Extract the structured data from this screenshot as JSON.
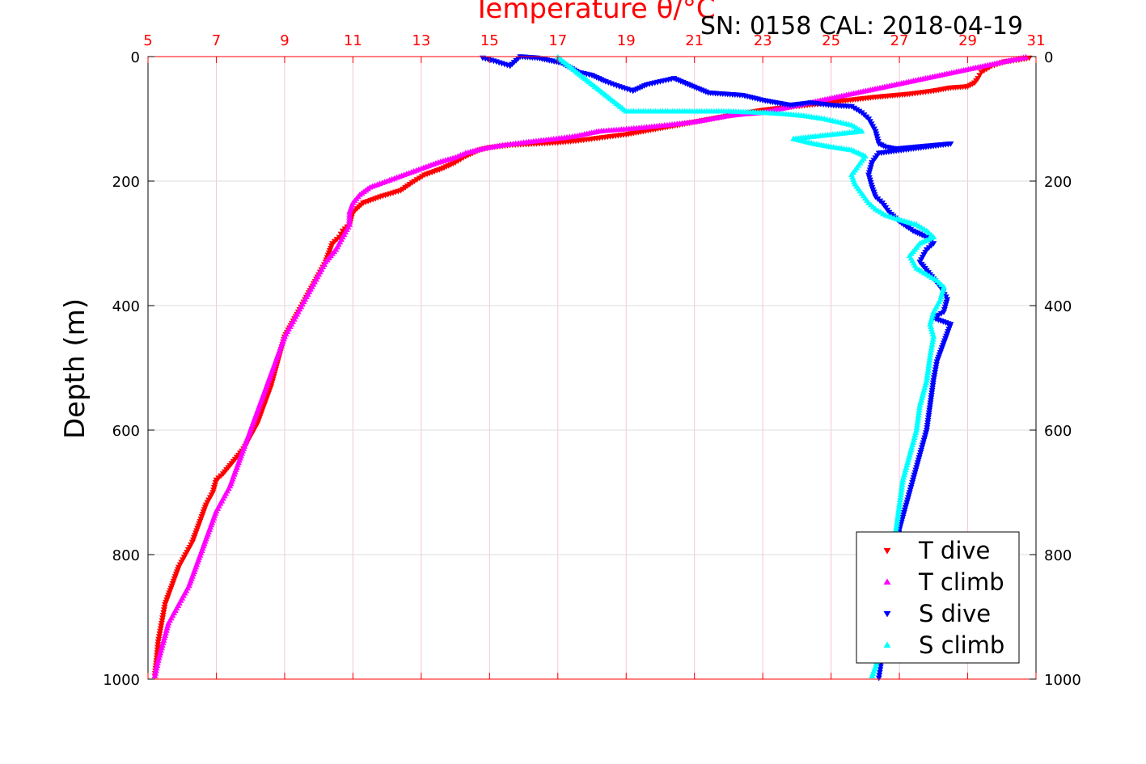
{
  "chart_data": {
    "type": "scatter",
    "title": "SN: 0158  CAL: 2018-04-19",
    "xlabel": "Temperature θ/°C",
    "ylabel": "Depth (m)",
    "xlim": [
      5,
      31
    ],
    "ylim": [
      1000,
      0
    ],
    "x_ticks": [
      5,
      7,
      9,
      11,
      13,
      15,
      17,
      19,
      21,
      23,
      25,
      27,
      29,
      31
    ],
    "y_ticks": [
      0,
      200,
      400,
      600,
      800,
      1000
    ],
    "grid": true,
    "legend_position": "bottom-right",
    "series": [
      {
        "name": "T dive",
        "marker": "triangle-down",
        "color": "#ff0000",
        "x": [
          30.8,
          30.5,
          30.1,
          29.7,
          29.4,
          29.3,
          29.2,
          29.0,
          28.5,
          28.0,
          27.3,
          26.3,
          25.2,
          24.3,
          23.6,
          23.0,
          22.0,
          21.0,
          20.0,
          19.0,
          18.3,
          17.6,
          17.0,
          16.3,
          15.6,
          15.0,
          14.7,
          14.3,
          14.0,
          13.6,
          13.1,
          12.8,
          12.4,
          11.8,
          11.3,
          11.0,
          10.9,
          10.7,
          10.6,
          10.4,
          10.2,
          10.0,
          9.6,
          9.4,
          9.0,
          8.8,
          8.6,
          8.4,
          8.2,
          8.0,
          7.8,
          7.5,
          7.2,
          7.0,
          6.9,
          6.7,
          6.5,
          6.3,
          6.1,
          5.9,
          5.7,
          5.5,
          5.4,
          5.3,
          5.25,
          5.2
        ],
        "y": [
          2,
          5,
          8,
          15,
          25,
          35,
          42,
          48,
          50,
          55,
          60,
          65,
          72,
          78,
          82,
          86,
          95,
          105,
          115,
          125,
          130,
          135,
          138,
          140,
          142,
          146,
          150,
          160,
          170,
          180,
          190,
          200,
          215,
          225,
          235,
          250,
          270,
          280,
          290,
          300,
          330,
          350,
          390,
          410,
          450,
          490,
          530,
          560,
          590,
          610,
          630,
          650,
          670,
          680,
          700,
          720,
          750,
          780,
          800,
          820,
          850,
          880,
          910,
          940,
          970,
          995
        ]
      },
      {
        "name": "T climb",
        "marker": "triangle-up",
        "color": "#ff00ff",
        "x": [
          30.7,
          23.0,
          22.5,
          22.0,
          21.5,
          21.0,
          20.2,
          19.3,
          18.2,
          17.5,
          16.8,
          16.0,
          15.3,
          14.8,
          14.3,
          14.0,
          13.5,
          13.0,
          12.5,
          12.0,
          11.5,
          11.2,
          11.0,
          10.9,
          10.9,
          10.7,
          10.5,
          10.2,
          10.0,
          9.8,
          9.6,
          9.4,
          9.2,
          9.0,
          8.8,
          8.6,
          8.4,
          8.2,
          8.0,
          7.8,
          7.6,
          7.4,
          7.2,
          7.0,
          6.8,
          6.6,
          6.4,
          6.2,
          6.0,
          5.8,
          5.6,
          5.5,
          5.4,
          5.3,
          5.2
        ],
        "y": [
          1,
          90,
          92,
          95,
          100,
          105,
          110,
          115,
          120,
          128,
          133,
          138,
          143,
          148,
          155,
          162,
          170,
          180,
          190,
          200,
          210,
          222,
          235,
          250,
          270,
          290,
          310,
          330,
          350,
          370,
          390,
          410,
          430,
          450,
          480,
          510,
          540,
          570,
          600,
          630,
          660,
          690,
          710,
          730,
          760,
          790,
          820,
          850,
          870,
          890,
          910,
          930,
          950,
          970,
          995
        ]
      },
      {
        "name": "S dive",
        "marker": "triangle-down",
        "color": "#0000ff",
        "x": [
          14.8,
          15.2,
          15.6,
          15.9,
          16.4,
          17.1,
          17.6,
          18.0,
          18.4,
          18.8,
          19.2,
          19.6,
          20.0,
          20.4,
          21.4,
          22.4,
          23.0,
          23.8,
          24.4,
          25.0,
          25.6,
          25.9,
          26.1,
          26.3,
          26.4,
          26.6,
          26.9,
          28.5,
          26.4,
          26.2,
          26.1,
          26.2,
          26.3,
          26.5,
          26.7,
          27.0,
          27.4,
          27.8,
          28.0,
          27.8,
          27.6,
          27.9,
          28.2,
          28.4,
          28.3,
          28.0,
          28.5,
          28.3,
          28.1,
          28.0,
          27.9,
          27.8,
          27.6,
          27.4,
          27.2,
          27.0,
          26.9,
          26.8,
          26.7,
          26.6,
          26.5,
          26.45,
          26.4
        ],
        "y": [
          2,
          8,
          15,
          0,
          2,
          10,
          25,
          30,
          40,
          48,
          55,
          45,
          40,
          35,
          58,
          62,
          70,
          78,
          74,
          78,
          80,
          90,
          100,
          120,
          140,
          145,
          148,
          140,
          155,
          170,
          190,
          210,
          225,
          235,
          250,
          265,
          280,
          290,
          300,
          310,
          330,
          350,
          370,
          390,
          410,
          420,
          430,
          460,
          490,
          520,
          560,
          600,
          640,
          680,
          720,
          760,
          800,
          840,
          880,
          920,
          950,
          980,
          998
        ]
      },
      {
        "name": "S climb",
        "marker": "triangle-up",
        "color": "#00ffff",
        "x": [
          17.0,
          19.0,
          20.0,
          21.0,
          22.0,
          23.0,
          23.6,
          24.2,
          24.8,
          25.2,
          25.6,
          25.9,
          23.9,
          24.5,
          25.0,
          25.6,
          26.0,
          25.8,
          25.6,
          25.7,
          25.9,
          26.1,
          26.3,
          26.6,
          27.0,
          27.5,
          27.8,
          28.0,
          27.6,
          27.3,
          27.5,
          27.8,
          28.1,
          28.3,
          28.2,
          28.0,
          27.9,
          28.0,
          27.9,
          27.8,
          27.6,
          27.5,
          27.3,
          27.1,
          27.0,
          26.9,
          26.8,
          26.7,
          26.6,
          26.5,
          26.4,
          26.3,
          26.2
        ],
        "y": [
          1,
          88,
          88,
          88,
          88,
          90,
          92,
          95,
          100,
          105,
          110,
          120,
          132,
          140,
          145,
          150,
          160,
          175,
          190,
          205,
          220,
          235,
          245,
          255,
          262,
          270,
          280,
          290,
          300,
          320,
          340,
          350,
          360,
          370,
          390,
          410,
          430,
          450,
          480,
          520,
          560,
          600,
          640,
          680,
          720,
          760,
          800,
          840,
          880,
          920,
          960,
          980,
          995
        ]
      }
    ]
  }
}
